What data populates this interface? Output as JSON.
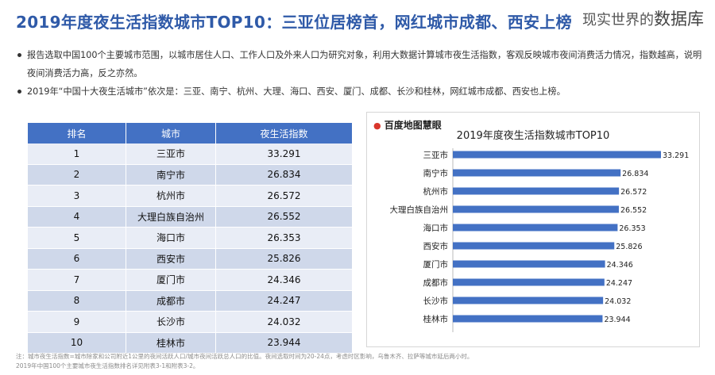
{
  "header": {
    "title": "2019年度夜生活指数城市TOP10：三亚位居榜首，网红城市成都、西安上榜",
    "brand_prefix": "现实世界的",
    "brand_suffix": "数据库"
  },
  "bullets": [
    "报告选取中国100个主要城市范围，以城市居住人口、工作人口及外来人口为研究对象，利用大数据计算城市夜生活指数，客观反映城市夜间消费活力情况，指数越高，说明夜间消费活力高，反之亦然。",
    "2019年“中国十大夜生活城市”依次是：三亚、南宁、杭州、大理、海口、西安、厦门、成都、长沙和桂林，网红城市成都、西安也上榜。"
  ],
  "table": {
    "headers": [
      "排名",
      "城市",
      "夜生活指数"
    ],
    "rows": [
      [
        "1",
        "三亚市",
        "33.291"
      ],
      [
        "2",
        "南宁市",
        "26.834"
      ],
      [
        "3",
        "杭州市",
        "26.572"
      ],
      [
        "4",
        "大理白族自治州",
        "26.552"
      ],
      [
        "5",
        "海口市",
        "26.353"
      ],
      [
        "6",
        "西安市",
        "25.826"
      ],
      [
        "7",
        "厦门市",
        "24.346"
      ],
      [
        "8",
        "成都市",
        "24.247"
      ],
      [
        "9",
        "长沙市",
        "24.032"
      ],
      [
        "10",
        "桂林市",
        "23.944"
      ]
    ]
  },
  "chart_logo": "百度地图慧眼",
  "chart_data": {
    "type": "bar",
    "orientation": "horizontal",
    "title": "2019年度夜生活指数城市TOP10",
    "categories": [
      "三亚市",
      "南宁市",
      "杭州市",
      "大理白族自治州",
      "海口市",
      "西安市",
      "厦门市",
      "成都市",
      "长沙市",
      "桂林市"
    ],
    "values": [
      33.291,
      26.834,
      26.572,
      26.552,
      26.353,
      25.826,
      24.346,
      24.247,
      24.032,
      23.944
    ],
    "value_labels": [
      "33.291",
      "26.834",
      "26.572",
      "26.552",
      "26.353",
      "25.826",
      "24.346",
      "24.247",
      "24.032",
      "23.944"
    ],
    "bar_color": "#4371c4",
    "grid": false
  },
  "footnotes": [
    "注：城市夜生活指数=城市除家和公司附近1公里的夜间活跃人口/城市夜间活跃总人口的比值。夜间选取时间为20-24点，考虑时区影响，乌鲁木齐、拉萨等城市延后两小时。",
    "2019年中国100个主要城市夜生活指数排名详见附表3-1和附表3-2。"
  ]
}
